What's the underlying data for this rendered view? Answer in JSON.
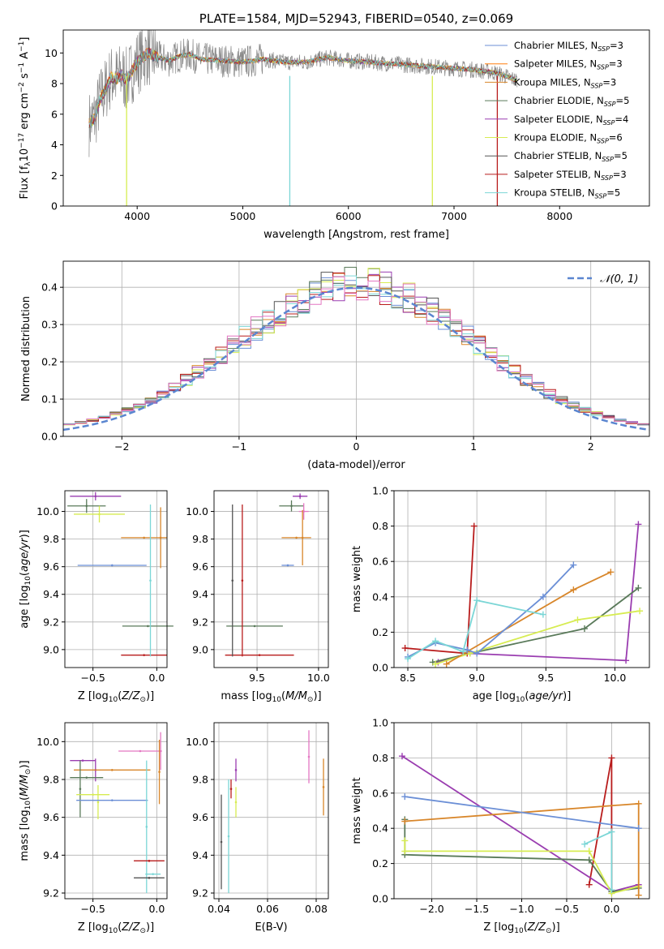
{
  "chart_data": [
    {
      "id": "spectrum",
      "type": "line",
      "title": "PLATE=1584, MJD=52943, FIBERID=0540, z=0.069",
      "xlabel": "wavelength [Angstrom, rest frame]",
      "ylabel": "Flux [f_λ10^-17 erg cm^-2 s^-1 A^-1]",
      "xlim": [
        3300,
        8850
      ],
      "ylim": [
        0,
        11.5
      ],
      "xticks": [
        "4000",
        "5000",
        "6000",
        "7000",
        "8000"
      ],
      "yticks": [
        "0",
        "2",
        "4",
        "6",
        "8",
        "10"
      ],
      "grid": false,
      "legend_position": "upper-right",
      "legend": [
        {
          "label": "Chabrier MILES, N_SSP=3",
          "color": "#6b8fd6"
        },
        {
          "label": "Salpeter MILES, N_SSP=3",
          "color": "#ff7f0e"
        },
        {
          "label": "Kroupa MILES, N_SSP=3",
          "color": "#d8862a"
        },
        {
          "label": "Chabrier ELODIE, N_SSP=5",
          "color": "#5a7a5a"
        },
        {
          "label": "Salpeter ELODIE, N_SSP=4",
          "color": "#9a3db0"
        },
        {
          "label": "Kroupa ELODIE, N_SSP=6",
          "color": "#d7ec52"
        },
        {
          "label": "Chabrier STELIB, N_SSP=5",
          "color": "#555555"
        },
        {
          "label": "Salpeter STELIB, N_SSP=3",
          "color": "#b81c1c"
        },
        {
          "label": "Kroupa STELIB, N_SSP=5",
          "color": "#7bd6d6"
        }
      ],
      "data_color": "#888888",
      "model_x": [
        3550,
        3600,
        3650,
        3700,
        3750,
        3800,
        3850,
        3900,
        3950,
        4000,
        4100,
        4200,
        4300,
        4400,
        4500,
        4600,
        4800,
        5000,
        5200,
        5400,
        5600,
        5800,
        6000,
        6200,
        6400,
        6600,
        6800,
        7000,
        7200,
        7400,
        7600
      ],
      "model_y": [
        5.4,
        5.8,
        7.0,
        7.6,
        8.4,
        8.3,
        8.6,
        8.2,
        8.8,
        9.4,
        10.0,
        9.7,
        9.5,
        9.8,
        9.9,
        9.6,
        9.5,
        9.4,
        9.6,
        9.4,
        9.4,
        9.7,
        9.5,
        9.4,
        9.3,
        9.2,
        9.1,
        9.0,
        8.9,
        8.7,
        8.2
      ]
    },
    {
      "id": "residuals",
      "type": "histogram",
      "xlabel": "(data-model)/error",
      "ylabel": "Normed distribution",
      "xlim": [
        -2.5,
        2.5
      ],
      "ylim": [
        0,
        0.47
      ],
      "xticks": [
        "−2",
        "−1",
        "0",
        "1",
        "2"
      ],
      "yticks": [
        "0.0",
        "0.1",
        "0.2",
        "0.3",
        "0.4"
      ],
      "grid": true,
      "legend_position": "upper-right",
      "reference_curve": {
        "label": "𝒩(0, 1)",
        "color": "#5b86d0",
        "mean": 0,
        "sigma": 1
      },
      "bin_width": 0.1
    },
    {
      "id": "age-vs-z",
      "type": "scatter",
      "xlabel": "Z [log10(Z/Z⊙)]",
      "ylabel": "age  [log10(age/yr)]",
      "xlim": [
        -0.72,
        0.08
      ],
      "ylim": [
        8.87,
        10.15
      ],
      "xticks": [
        "−0.5",
        "0.0"
      ],
      "yticks": [
        "9.0",
        "9.2",
        "9.4",
        "9.6",
        "9.8",
        "10.0"
      ],
      "grid": true,
      "points": [
        {
          "x": -0.48,
          "y": 10.11,
          "xerr": 0.2,
          "yerr": 0.03,
          "color": "#9a3db0"
        },
        {
          "x": -0.55,
          "y": 10.04,
          "xerr": 0.15,
          "yerr": 0.05,
          "color": "#5a7a5a"
        },
        {
          "x": -0.45,
          "y": 9.98,
          "xerr": 0.2,
          "yerr": 0.06,
          "color": "#d7ec52"
        },
        {
          "x": -0.35,
          "y": 9.61,
          "xerr": 0.27,
          "yerr": 0.0,
          "color": "#6b8fd6"
        },
        {
          "x": -0.1,
          "y": 9.81,
          "xerr": 0.18,
          "yerr": 0.0,
          "color": "#d8862a"
        },
        {
          "x": 0.03,
          "y": 9.81,
          "xerr": 0.0,
          "yerr": 0.22,
          "color": "#d8862a"
        },
        {
          "x": -0.07,
          "y": 9.17,
          "xerr": 0.2,
          "yerr": 0.0,
          "color": "#5a7a5a"
        },
        {
          "x": -0.1,
          "y": 8.96,
          "xerr": 0.18,
          "yerr": 0.0,
          "color": "#b81c1c"
        },
        {
          "x": -0.05,
          "y": 9.5,
          "xerr": 0.0,
          "yerr": 0.55,
          "color": "#7bd6d6"
        }
      ]
    },
    {
      "id": "age-vs-mass",
      "type": "scatter",
      "xlabel": "mass [log10(M/M⊙)]",
      "ylabel": "",
      "xlim": [
        9.15,
        10.08
      ],
      "ylim": [
        8.87,
        10.15
      ],
      "xticks": [
        "9.5",
        "10.0"
      ],
      "yticks": [
        "9.0",
        "9.2",
        "9.4",
        "9.6",
        "9.8",
        "10.0"
      ],
      "grid": true,
      "points": [
        {
          "x": 9.85,
          "y": 10.11,
          "xerr": 0.06,
          "yerr": 0.02,
          "color": "#9a3db0"
        },
        {
          "x": 9.78,
          "y": 10.04,
          "xerr": 0.1,
          "yerr": 0.04,
          "color": "#5a7a5a"
        },
        {
          "x": 9.88,
          "y": 10.0,
          "xerr": 0.04,
          "yerr": 0.06,
          "color": "#e377c2"
        },
        {
          "x": 9.82,
          "y": 9.81,
          "xerr": 0.12,
          "yerr": 0.0,
          "color": "#d8862a"
        },
        {
          "x": 9.87,
          "y": 9.81,
          "xerr": 0.0,
          "yerr": 0.2,
          "color": "#d8862a"
        },
        {
          "x": 9.75,
          "y": 9.61,
          "xerr": 0.05,
          "yerr": 0.0,
          "color": "#6b8fd6"
        },
        {
          "x": 9.48,
          "y": 9.17,
          "xerr": 0.23,
          "yerr": 0.0,
          "color": "#5a7a5a"
        },
        {
          "x": 9.52,
          "y": 8.96,
          "xerr": 0.28,
          "yerr": 0.0,
          "color": "#b81c1c"
        },
        {
          "x": 9.3,
          "y": 9.5,
          "xerr": 0.0,
          "yerr": 0.55,
          "color": "#555555"
        },
        {
          "x": 9.38,
          "y": 9.5,
          "xerr": 0.0,
          "yerr": 0.55,
          "color": "#b81c1c"
        }
      ]
    },
    {
      "id": "massweight-vs-age",
      "type": "line",
      "xlabel": "age  [log10(age/yr)]",
      "ylabel": "mass weight",
      "xlim": [
        8.4,
        10.25
      ],
      "ylim": [
        0,
        1.0
      ],
      "xticks": [
        "8.5",
        "9.0",
        "9.5",
        "10.0"
      ],
      "yticks": [
        "0.0",
        "0.2",
        "0.4",
        "0.6",
        "0.8",
        "1.0"
      ],
      "grid": true,
      "series": [
        {
          "color": "#b81c1c",
          "x": [
            8.48,
            8.93,
            8.98
          ],
          "y": [
            0.11,
            0.08,
            0.8
          ]
        },
        {
          "color": "#9a3db0",
          "x": [
            8.72,
            8.95,
            10.08,
            10.17
          ],
          "y": [
            0.03,
            0.08,
            0.04,
            0.81
          ]
        },
        {
          "color": "#5a7a5a",
          "x": [
            8.68,
            8.95,
            9.78,
            10.17
          ],
          "y": [
            0.03,
            0.08,
            0.22,
            0.45
          ]
        },
        {
          "color": "#d7ec52",
          "x": [
            8.7,
            8.95,
            9.73,
            10.18
          ],
          "y": [
            0.02,
            0.08,
            0.27,
            0.32
          ]
        },
        {
          "color": "#d8862a",
          "x": [
            8.78,
            8.93,
            9.7,
            9.97
          ],
          "y": [
            0.02,
            0.09,
            0.44,
            0.54
          ]
        },
        {
          "color": "#6b8fd6",
          "x": [
            8.5,
            8.7,
            8.93,
            9.0,
            9.48,
            9.7
          ],
          "y": [
            0.06,
            0.14,
            0.1,
            0.08,
            0.4,
            0.58
          ]
        },
        {
          "color": "#7bd6d6",
          "x": [
            8.5,
            8.7,
            8.9,
            9.0,
            9.48
          ],
          "y": [
            0.05,
            0.15,
            0.09,
            0.38,
            0.3
          ]
        }
      ]
    },
    {
      "id": "mass-vs-z",
      "type": "scatter",
      "xlabel": "Z [log10(Z/Z⊙)]",
      "ylabel": "mass [log10(M/M⊙)]",
      "xlim": [
        -0.72,
        0.08
      ],
      "ylim": [
        9.17,
        10.1
      ],
      "xticks": [
        "−0.5",
        "0.0"
      ],
      "yticks": [
        "9.2",
        "9.4",
        "9.6",
        "9.8",
        "10.0"
      ],
      "grid": true,
      "points": [
        {
          "x": -0.13,
          "y": 9.95,
          "xerr": 0.17,
          "yerr": 0.0,
          "color": "#e377c2"
        },
        {
          "x": 0.03,
          "y": 9.95,
          "xerr": 0.0,
          "yerr": 0.1,
          "color": "#e377c2"
        },
        {
          "x": -0.58,
          "y": 9.9,
          "xerr": 0.1,
          "yerr": 0.0,
          "color": "#9a3db0"
        },
        {
          "x": -0.48,
          "y": 9.85,
          "xerr": 0.0,
          "yerr": 0.06,
          "color": "#9a3db0"
        },
        {
          "x": -0.35,
          "y": 9.85,
          "xerr": 0.3,
          "yerr": 0.0,
          "color": "#d8862a"
        },
        {
          "x": 0.02,
          "y": 9.84,
          "xerr": 0.0,
          "yerr": 0.17,
          "color": "#d8862a"
        },
        {
          "x": -0.55,
          "y": 9.81,
          "xerr": 0.13,
          "yerr": 0.0,
          "color": "#5a7a5a"
        },
        {
          "x": -0.6,
          "y": 9.75,
          "xerr": 0.0,
          "yerr": 0.15,
          "color": "#5a7a5a"
        },
        {
          "x": -0.5,
          "y": 9.72,
          "xerr": 0.13,
          "yerr": 0.0,
          "color": "#d7ec52"
        },
        {
          "x": -0.46,
          "y": 9.68,
          "xerr": 0.0,
          "yerr": 0.09,
          "color": "#d7ec52"
        },
        {
          "x": -0.35,
          "y": 9.69,
          "xerr": 0.28,
          "yerr": 0.0,
          "color": "#6b8fd6"
        },
        {
          "x": -0.08,
          "y": 9.55,
          "xerr": 0.0,
          "yerr": 0.35,
          "color": "#7bd6d6"
        },
        {
          "x": -0.06,
          "y": 9.37,
          "xerr": 0.12,
          "yerr": 0.0,
          "color": "#b81c1c"
        },
        {
          "x": -0.03,
          "y": 9.3,
          "xerr": 0.06,
          "yerr": 0.0,
          "color": "#7bd6d6"
        },
        {
          "x": -0.06,
          "y": 9.28,
          "xerr": 0.12,
          "yerr": 0.0,
          "color": "#555555"
        }
      ]
    },
    {
      "id": "mass-vs-ebv",
      "type": "scatter",
      "xlabel": "E(B-V)",
      "ylabel": "",
      "xlim": [
        0.038,
        0.085
      ],
      "ylim": [
        9.17,
        10.1
      ],
      "xticks": [
        "0.04",
        "0.06",
        "0.08"
      ],
      "yticks": [
        "9.2",
        "9.4",
        "9.6",
        "9.8",
        "10.0"
      ],
      "grid": true,
      "points": [
        {
          "x": 0.041,
          "y": 9.47,
          "xerr": 0.0,
          "yerr": 0.25,
          "color": "#555555"
        },
        {
          "x": 0.044,
          "y": 9.5,
          "xerr": 0.0,
          "yerr": 0.3,
          "color": "#7bd6d6"
        },
        {
          "x": 0.045,
          "y": 9.75,
          "xerr": 0.0,
          "yerr": 0.05,
          "color": "#b81c1c"
        },
        {
          "x": 0.047,
          "y": 9.85,
          "xerr": 0.0,
          "yerr": 0.06,
          "color": "#9a3db0"
        },
        {
          "x": 0.047,
          "y": 9.68,
          "xerr": 0.0,
          "yerr": 0.08,
          "color": "#d7ec52"
        },
        {
          "x": 0.077,
          "y": 9.92,
          "xerr": 0.0,
          "yerr": 0.14,
          "color": "#e377c2"
        },
        {
          "x": 0.083,
          "y": 9.76,
          "xerr": 0.0,
          "yerr": 0.15,
          "color": "#d8862a"
        }
      ]
    },
    {
      "id": "massweight-vs-z",
      "type": "line",
      "xlabel": "Z [log10(Z/Z⊙)]",
      "ylabel": "mass weight",
      "xlim": [
        -2.42,
        0.42
      ],
      "ylim": [
        0,
        1.0
      ],
      "xticks": [
        "−2.0",
        "−1.5",
        "−1.0",
        "−0.5",
        "0.0"
      ],
      "yticks": [
        "0.0",
        "0.2",
        "0.4",
        "0.6",
        "0.8",
        "1.0"
      ],
      "grid": true,
      "series": [
        {
          "color": "#b81c1c",
          "x": [
            -0.25,
            0.0,
            0.0
          ],
          "y": [
            0.08,
            0.8,
            0.05
          ]
        },
        {
          "color": "#9a3db0",
          "x": [
            -2.33,
            0.0,
            0.3
          ],
          "y": [
            0.81,
            0.04,
            0.08
          ]
        },
        {
          "color": "#5a7a5a",
          "x": [
            -2.3,
            -2.3,
            -0.25,
            0.0,
            0.3
          ],
          "y": [
            0.45,
            0.25,
            0.22,
            0.04,
            0.06
          ]
        },
        {
          "color": "#d7ec52",
          "x": [
            -2.3,
            -2.3,
            -0.25,
            0.0,
            0.3
          ],
          "y": [
            0.33,
            0.27,
            0.27,
            0.03,
            0.07
          ]
        },
        {
          "color": "#d8862a",
          "x": [
            -2.3,
            0.3,
            0.3
          ],
          "y": [
            0.44,
            0.54,
            0.02
          ]
        },
        {
          "color": "#6b8fd6",
          "x": [
            -2.3,
            0.3
          ],
          "y": [
            0.58,
            0.4
          ]
        },
        {
          "color": "#7bd6d6",
          "x": [
            -0.3,
            0.0,
            0.0
          ],
          "y": [
            0.31,
            0.38,
            0.05
          ]
        }
      ]
    }
  ]
}
